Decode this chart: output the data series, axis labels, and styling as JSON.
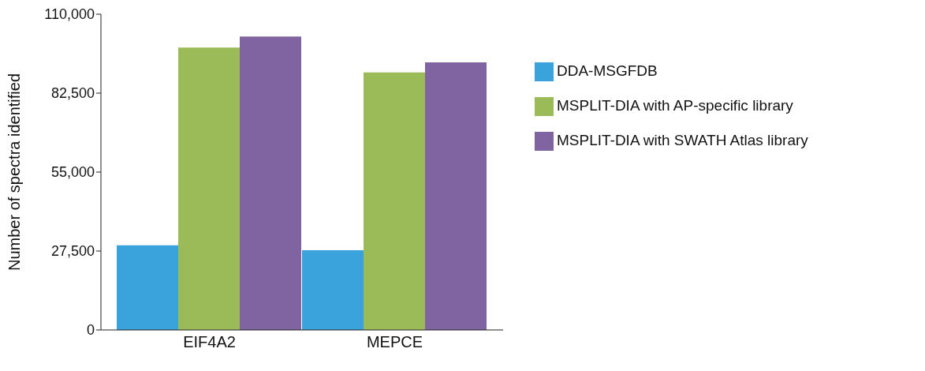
{
  "chart_data": {
    "type": "bar",
    "ylabel": "Number of spectra identified",
    "categories": [
      "EIF4A2",
      "MEPCE"
    ],
    "series": [
      {
        "name": "DDA-MSGFDB",
        "color": "#3ba3db",
        "values": [
          29500,
          27800
        ]
      },
      {
        "name": "MSPLIT-DIA with AP-specific library",
        "color": "#9bbb59",
        "values": [
          98400,
          89700
        ]
      },
      {
        "name": "MSPLIT-DIA with SWATH Atlas library",
        "color": "#8064a2",
        "values": [
          102200,
          93200
        ]
      }
    ],
    "ylim": [
      0,
      110000
    ],
    "yticks": [
      {
        "value": 0,
        "label": "0"
      },
      {
        "value": 27500,
        "label": "27,500"
      },
      {
        "value": 55000,
        "label": "55,000"
      },
      {
        "value": 82500,
        "label": "82,500"
      },
      {
        "value": 110000,
        "label": "110,000"
      }
    ],
    "grid": false,
    "legend": "right"
  }
}
